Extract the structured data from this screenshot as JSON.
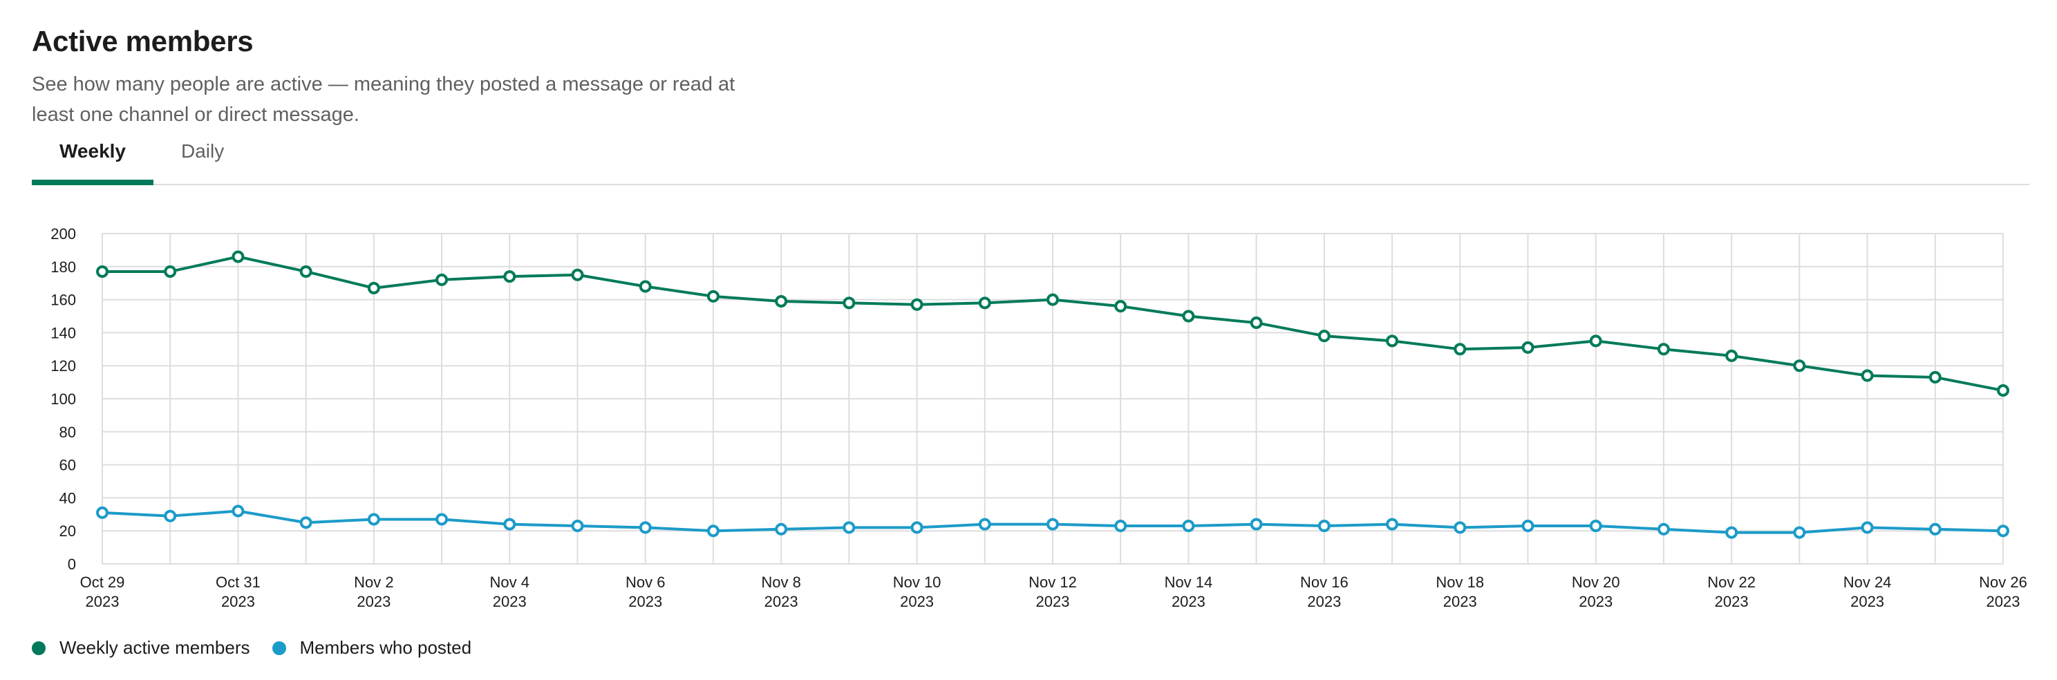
{
  "header": {
    "title": "Active members",
    "subtitle": "See how many people are active — meaning they posted a message or read at least one channel or direct message."
  },
  "tabs": [
    {
      "label": "Weekly",
      "active": true
    },
    {
      "label": "Daily",
      "active": false
    }
  ],
  "colors": {
    "weekly_active": "#007a5a",
    "posted": "#1c9bc9",
    "grid": "#dddddd"
  },
  "chart_data": {
    "type": "line",
    "title": "",
    "xlabel": "",
    "ylabel": "",
    "ylim": [
      0,
      200
    ],
    "yticks": [
      0,
      20,
      40,
      60,
      80,
      100,
      120,
      140,
      160,
      180,
      200
    ],
    "grid": true,
    "legend_position": "bottom-left",
    "x": [
      "Oct 29 2023",
      "Oct 30 2023",
      "Oct 31 2023",
      "Nov 1 2023",
      "Nov 2 2023",
      "Nov 3 2023",
      "Nov 4 2023",
      "Nov 5 2023",
      "Nov 6 2023",
      "Nov 7 2023",
      "Nov 8 2023",
      "Nov 9 2023",
      "Nov 10 2023",
      "Nov 11 2023",
      "Nov 12 2023",
      "Nov 13 2023",
      "Nov 14 2023",
      "Nov 15 2023",
      "Nov 16 2023",
      "Nov 17 2023",
      "Nov 18 2023",
      "Nov 19 2023",
      "Nov 20 2023",
      "Nov 21 2023",
      "Nov 22 2023",
      "Nov 23 2023",
      "Nov 24 2023",
      "Nov 25 2023",
      "Nov 26 2023"
    ],
    "tick_labels": [
      {
        "month_day": "Oct 29",
        "year": "2023"
      },
      {
        "month_day": "Oct 31",
        "year": "2023"
      },
      {
        "month_day": "Nov 2",
        "year": "2023"
      },
      {
        "month_day": "Nov 4",
        "year": "2023"
      },
      {
        "month_day": "Nov 6",
        "year": "2023"
      },
      {
        "month_day": "Nov 8",
        "year": "2023"
      },
      {
        "month_day": "Nov 10",
        "year": "2023"
      },
      {
        "month_day": "Nov 12",
        "year": "2023"
      },
      {
        "month_day": "Nov 14",
        "year": "2023"
      },
      {
        "month_day": "Nov 16",
        "year": "2023"
      },
      {
        "month_day": "Nov 18",
        "year": "2023"
      },
      {
        "month_day": "Nov 20",
        "year": "2023"
      },
      {
        "month_day": "Nov 22",
        "year": "2023"
      },
      {
        "month_day": "Nov 24",
        "year": "2023"
      },
      {
        "month_day": "Nov 26",
        "year": "2023"
      }
    ],
    "series": [
      {
        "name": "Weekly active members",
        "color": "#007a5a",
        "values": [
          177,
          177,
          186,
          177,
          167,
          172,
          174,
          175,
          168,
          162,
          159,
          158,
          157,
          158,
          160,
          156,
          150,
          146,
          138,
          135,
          130,
          131,
          135,
          130,
          126,
          120,
          114,
          113,
          105
        ]
      },
      {
        "name": "Members who posted",
        "color": "#1c9bc9",
        "values": [
          31,
          29,
          32,
          25,
          27,
          27,
          24,
          23,
          22,
          20,
          21,
          22,
          22,
          24,
          24,
          23,
          23,
          24,
          23,
          24,
          22,
          23,
          23,
          21,
          19,
          19,
          22,
          21,
          20
        ]
      }
    ]
  }
}
